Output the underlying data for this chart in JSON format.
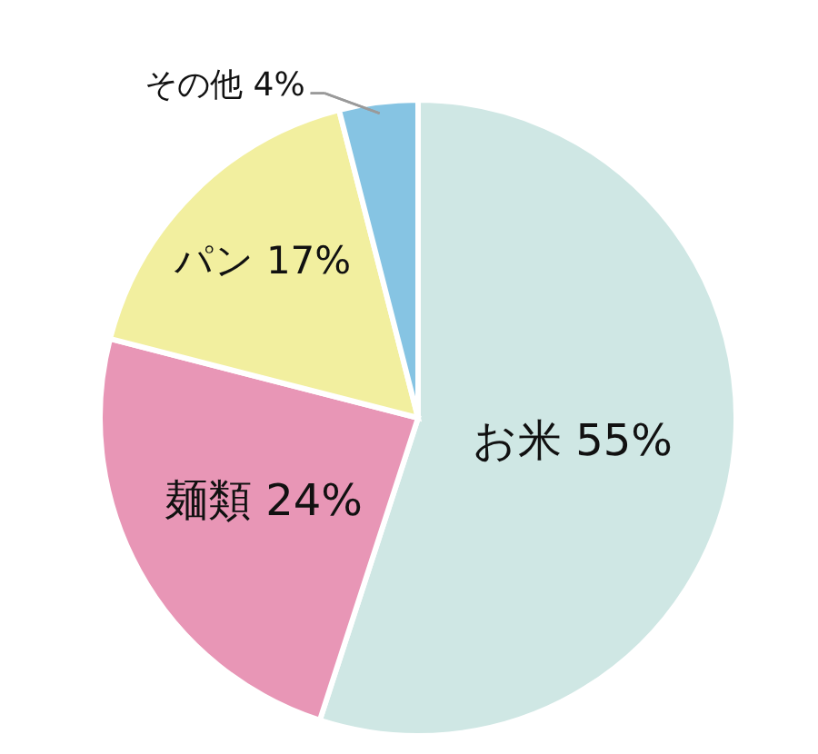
{
  "chart_data": {
    "type": "pie",
    "categories": [
      "お米",
      "麺類",
      "パン",
      "その他"
    ],
    "values": [
      55,
      24,
      17,
      4
    ],
    "colors": [
      "#cfe7e4",
      "#e896b6",
      "#f2ef9f",
      "#86c4e3"
    ],
    "value_labels": [
      "55%",
      "24%",
      "17%",
      "4%"
    ]
  }
}
